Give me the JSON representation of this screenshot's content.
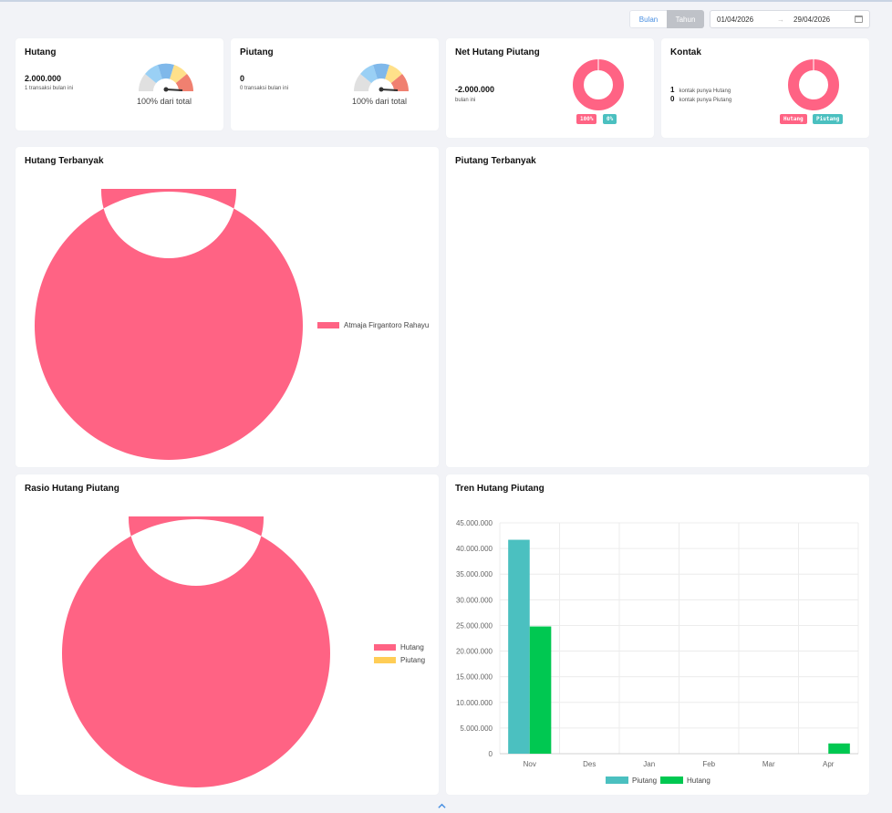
{
  "period_toggle": {
    "month_label": "Bulan",
    "year_label": "Tahun"
  },
  "date_range": {
    "start": "01/04/2026",
    "end": "29/04/2026"
  },
  "colors": {
    "pink": "#ff6384",
    "teal": "#4bc0c0",
    "yellow": "#ffcd56",
    "green": "#00c851"
  },
  "hutang_card": {
    "title": "Hutang",
    "value": "2.000.000",
    "subtitle": "1 transaksi bulan ini",
    "gauge_label": "100% dari total"
  },
  "piutang_card": {
    "title": "Piutang",
    "value": "0",
    "subtitle": "0 transaksi bulan ini",
    "gauge_label": "100% dari total"
  },
  "net_card": {
    "title": "Net Hutang Piutang",
    "value": "-2.000.000",
    "subtitle": "bulan ini",
    "badge_left": "100%",
    "badge_right": "0%"
  },
  "kontak_card": {
    "title": "Kontak",
    "hutang_count": "1",
    "hutang_text": "kontak punya Hutang",
    "piutang_count": "0",
    "piutang_text": "kontak punya Piutang",
    "badge_hutang": "Hutang",
    "badge_piutang": "Piutang"
  },
  "hutang_terbanyak": {
    "title": "Hutang Terbanyak",
    "legend": [
      "Atmaja Firgantoro Rahayu"
    ]
  },
  "piutang_terbanyak": {
    "title": "Piutang Terbanyak"
  },
  "rasio": {
    "title": "Rasio Hutang Piutang",
    "legend": [
      "Hutang",
      "Piutang"
    ]
  },
  "tren": {
    "title": "Tren Hutang Piutang"
  },
  "chart_data": [
    {
      "type": "pie",
      "title": "Hutang Terbanyak",
      "categories": [
        "Atmaja Firgantoro Rahayu"
      ],
      "values": [
        100
      ],
      "legend": "right"
    },
    {
      "type": "pie",
      "title": "Rasio Hutang Piutang",
      "categories": [
        "Hutang",
        "Piutang"
      ],
      "values": [
        100,
        0
      ],
      "legend": "right"
    },
    {
      "type": "bar",
      "title": "Tren Hutang Piutang",
      "categories": [
        "Nov",
        "Des",
        "Jan",
        "Feb",
        "Mar",
        "Apr"
      ],
      "series": [
        {
          "name": "Piutang",
          "values": [
            41700000,
            0,
            0,
            0,
            0,
            0
          ]
        },
        {
          "name": "Hutang",
          "values": [
            24800000,
            0,
            0,
            0,
            0,
            2000000
          ]
        }
      ],
      "yticks": [
        "0",
        "5.000.000",
        "10.000.000",
        "15.000.000",
        "20.000.000",
        "25.000.000",
        "30.000.000",
        "35.000.000",
        "40.000.000",
        "45.000.000"
      ],
      "ylim": [
        0,
        45000000
      ],
      "grid": true,
      "legend": "bottom"
    }
  ]
}
